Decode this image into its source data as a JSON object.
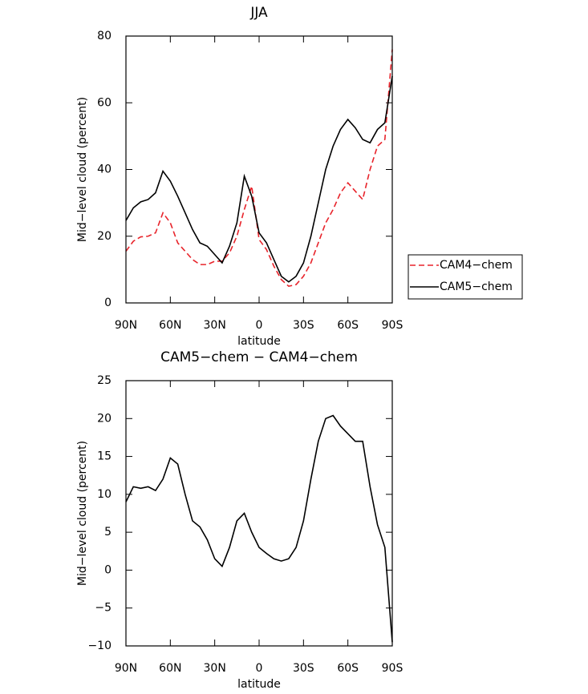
{
  "chart_data": [
    {
      "type": "line",
      "title": "JJA",
      "xlabel": "latitude",
      "ylabel": "Mid−level cloud (percent)",
      "x": [
        90,
        85,
        80,
        75,
        70,
        65,
        60,
        55,
        50,
        45,
        40,
        35,
        30,
        25,
        20,
        15,
        10,
        5,
        0,
        -5,
        -10,
        -15,
        -20,
        -25,
        -30,
        -35,
        -40,
        -45,
        -50,
        -55,
        -60,
        -65,
        -70,
        -75,
        -80,
        -85,
        -90
      ],
      "series": [
        {
          "name": "CAM4−chem",
          "color": "#e8242b",
          "dashed": true,
          "values": [
            15.5,
            18.5,
            19.8,
            20,
            21,
            27,
            24,
            18,
            15.5,
            13,
            11.5,
            11.5,
            12.5,
            12.5,
            15,
            20,
            28,
            35,
            19,
            16,
            11,
            7,
            5,
            5.5,
            8,
            12,
            18,
            24,
            28,
            33,
            36,
            33.5,
            31,
            40,
            47,
            49,
            76
          ]
        },
        {
          "name": "CAM5−chem",
          "color": "#000000",
          "dashed": false,
          "values": [
            24.7,
            28.5,
            30.3,
            31,
            33,
            39.5,
            36.5,
            32,
            27,
            22,
            18,
            17,
            14.5,
            12,
            17,
            24,
            38,
            32,
            21,
            18,
            13,
            8,
            6.3,
            8,
            12,
            20,
            30,
            40,
            47,
            52,
            55,
            52.5,
            49,
            48,
            52,
            54,
            68
          ]
        }
      ],
      "xlim": [
        90,
        -90
      ],
      "xticks": [
        {
          "value": 90,
          "label": "90N"
        },
        {
          "value": 60,
          "label": "60N"
        },
        {
          "value": 30,
          "label": "30N"
        },
        0,
        {
          "value": -30,
          "label": "30S"
        },
        {
          "value": -60,
          "label": "60S"
        },
        {
          "value": -90,
          "label": "90S"
        }
      ],
      "ylim": [
        0,
        80
      ],
      "yticks": [
        0,
        20,
        40,
        60,
        80
      ],
      "legend": "right"
    },
    {
      "type": "line",
      "title": "CAM5−chem − CAM4−chem",
      "xlabel": "latitude",
      "ylabel": "Mid−level cloud (percent)",
      "x": [
        90,
        85,
        80,
        75,
        70,
        65,
        60,
        55,
        50,
        45,
        40,
        35,
        30,
        25,
        20,
        15,
        10,
        5,
        0,
        -5,
        -10,
        -15,
        -20,
        -25,
        -30,
        -35,
        -40,
        -45,
        -50,
        -55,
        -60,
        -65,
        -70,
        -75,
        -80,
        -85,
        -90
      ],
      "series": [
        {
          "color": "#000000",
          "dashed": false,
          "values": [
            9,
            11,
            10.8,
            11,
            10.5,
            12,
            14.8,
            14,
            10,
            6.5,
            5.7,
            4,
            1.5,
            0.5,
            3,
            6.5,
            7.5,
            5,
            3,
            2.2,
            1.5,
            1.2,
            1.5,
            3,
            6.5,
            12,
            17,
            20,
            20.4,
            19,
            18,
            17,
            17,
            11,
            6,
            3,
            -9.5
          ]
        }
      ],
      "xlim": [
        90,
        -90
      ],
      "xticks": [
        {
          "value": 90,
          "label": "90N"
        },
        {
          "value": 60,
          "label": "60N"
        },
        {
          "value": 30,
          "label": "30N"
        },
        0,
        {
          "value": -30,
          "label": "30S"
        },
        {
          "value": -60,
          "label": "60S"
        },
        {
          "value": -90,
          "label": "90S"
        }
      ],
      "ylim": [
        -10,
        25
      ],
      "yticks": [
        {
          "value": -10,
          "label": "−10"
        },
        {
          "value": -5,
          "label": "−5"
        },
        0,
        5,
        10,
        15,
        20,
        25
      ]
    }
  ]
}
